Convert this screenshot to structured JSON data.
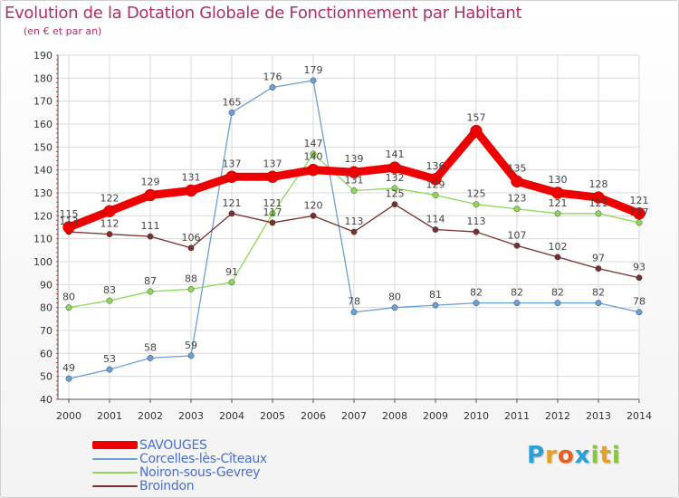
{
  "header": {
    "title": "Evolution de la Dotation Globale de Fonctionnement par Habitant",
    "subtitle": "(en € et par an)"
  },
  "logo": {
    "letters": [
      "P",
      "r",
      "o",
      "x",
      "i",
      "t",
      "i"
    ],
    "colors": [
      "#2aa0d8",
      "#e8a020",
      "#e86020",
      "#2aa0d8",
      "#8cc63e",
      "#e8a020",
      "#8cc63e"
    ]
  },
  "chart_data": {
    "type": "line",
    "x": [
      "2000",
      "2001",
      "2002",
      "2003",
      "2004",
      "2005",
      "2006",
      "2007",
      "2008",
      "2009",
      "2010",
      "2011",
      "2012",
      "2013",
      "2014"
    ],
    "ylim": [
      40,
      190
    ],
    "yticks": [
      40,
      50,
      60,
      70,
      80,
      90,
      100,
      110,
      120,
      130,
      140,
      150,
      160,
      170,
      180,
      190
    ],
    "grid": true,
    "legend_position": "bottom-left",
    "series": [
      {
        "name": "SAVOUGES",
        "color": "#ee0000",
        "emphasis": true,
        "values": [
          115,
          122,
          129,
          131,
          137,
          137,
          140,
          139,
          141,
          136,
          157,
          135,
          130,
          128,
          121
        ]
      },
      {
        "name": "Corcelles-lès-Cîteaux",
        "color": "#6a9fd8",
        "emphasis": false,
        "values": [
          49,
          53,
          58,
          59,
          165,
          176,
          179,
          78,
          80,
          81,
          82,
          82,
          82,
          82,
          78
        ]
      },
      {
        "name": "Noiron-sous-Gevrey",
        "color": "#8ed855",
        "emphasis": false,
        "values": [
          80,
          83,
          87,
          88,
          91,
          121,
          147,
          131,
          132,
          129,
          125,
          123,
          121,
          121,
          117
        ]
      },
      {
        "name": "Broindon",
        "color": "#7a2e2e",
        "emphasis": false,
        "values": [
          113,
          112,
          111,
          106,
          121,
          117,
          120,
          113,
          125,
          114,
          113,
          107,
          102,
          97,
          93
        ]
      }
    ]
  }
}
